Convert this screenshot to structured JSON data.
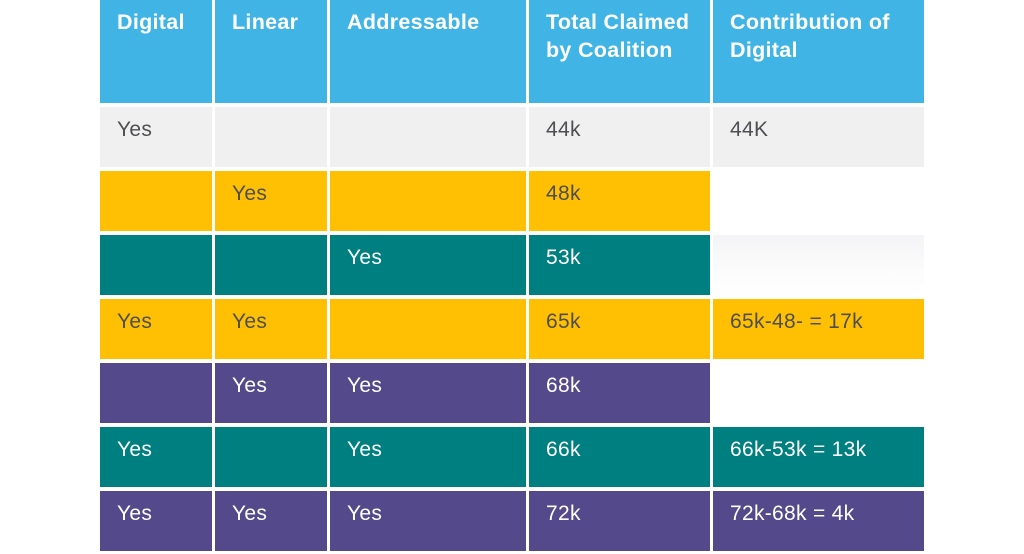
{
  "colors": {
    "blue": "#41b4e6",
    "gray": "#f0f0f1",
    "gold": "#ffc003",
    "teal": "#007f80",
    "purple": "#544a8b",
    "dark": "#4f4f52"
  },
  "chart_data": {
    "type": "table",
    "columns": [
      "Digital",
      "Linear",
      "Addressable",
      "Total Claimed by Coalition",
      "Contribution of Digital"
    ],
    "rows": [
      [
        "Yes",
        "",
        "",
        "44k",
        "44K"
      ],
      [
        "",
        "Yes",
        "",
        "48k",
        ""
      ],
      [
        "",
        "",
        "Yes",
        "53k",
        ""
      ],
      [
        "Yes",
        "Yes",
        "",
        "65k",
        "65k-48- = 17k"
      ],
      [
        "",
        "Yes",
        "Yes",
        "68k",
        ""
      ],
      [
        "Yes",
        "",
        "Yes",
        "66k",
        "66k-53k = 13k"
      ],
      [
        "Yes",
        "Yes",
        "Yes",
        "72k",
        "72k-68k = 4k"
      ]
    ],
    "row_fills": [
      "gray",
      "gold",
      "teal",
      "gold",
      "purple",
      "teal",
      "purple"
    ],
    "contribution_cell_fills": [
      "gray",
      "white",
      "light-gradient",
      "gold",
      "white",
      "teal",
      "purple"
    ]
  }
}
